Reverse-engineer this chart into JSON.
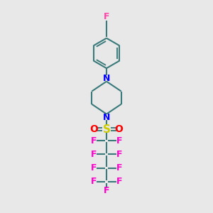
{
  "background_color": "#e8e8e8",
  "bond_color": "#3a7a7a",
  "N_color": "#0000ff",
  "O_color": "#ff0000",
  "S_color": "#cccc00",
  "F_color": "#ff00cc",
  "F_top_color": "#ff44aa",
  "line_width": 1.5,
  "figsize": [
    3.0,
    3.0
  ],
  "dpi": 100,
  "xlim": [
    0,
    10
  ],
  "ylim": [
    0,
    10
  ]
}
